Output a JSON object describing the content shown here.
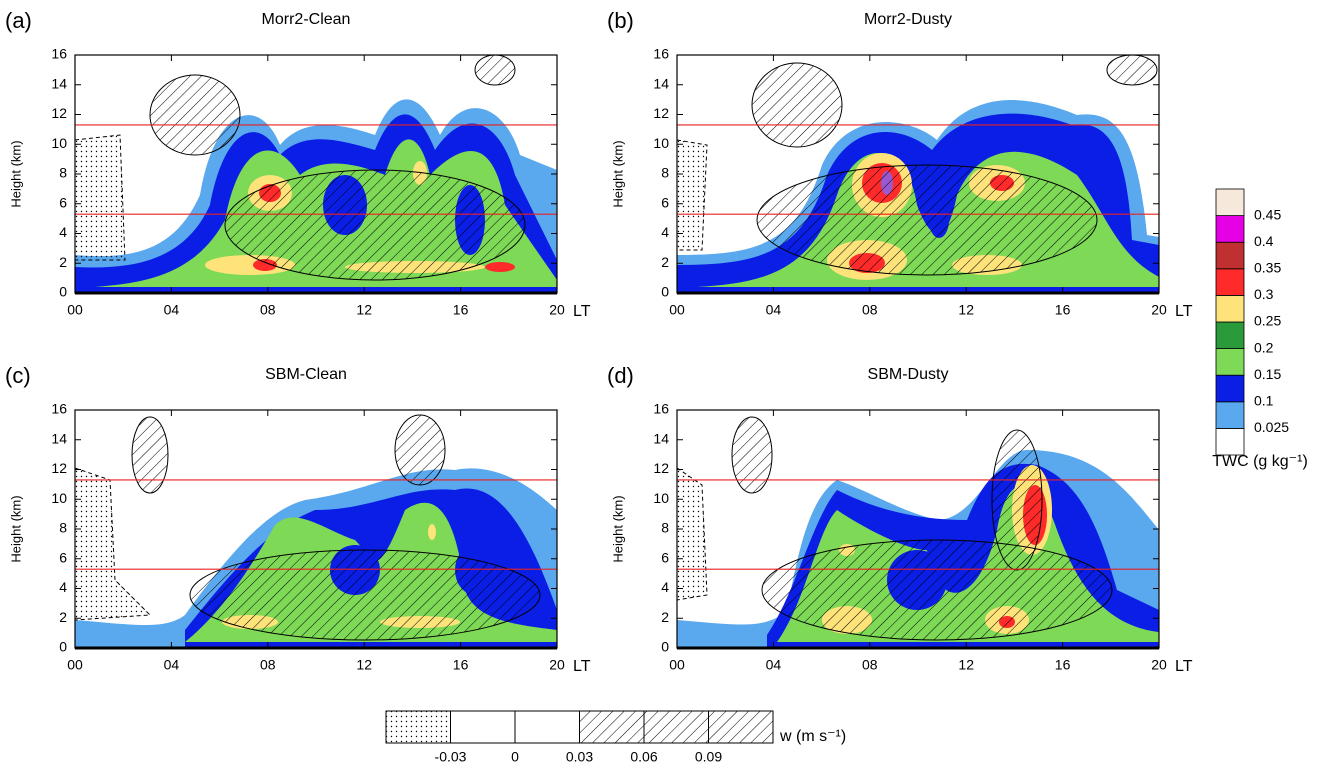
{
  "chart_data": [
    {
      "type": "contour",
      "panel_label": "(a)",
      "title": "Morr2-Clean",
      "ylabel": "Height (km)",
      "xlabel": "LT",
      "xlim": [
        0,
        20
      ],
      "ylim": [
        0,
        16
      ],
      "xticks": [
        {
          "value": 0,
          "label": "00"
        },
        {
          "value": 4,
          "label": "04"
        },
        {
          "value": 8,
          "label": "08"
        },
        {
          "value": 12,
          "label": "12"
        },
        {
          "value": 16,
          "label": "16"
        },
        {
          "value": 20,
          "label": "20"
        }
      ],
      "yticks": [
        0,
        2,
        4,
        6,
        8,
        10,
        12,
        14,
        16
      ],
      "hlines": [
        5.3,
        11.3
      ],
      "hline_color": "#e82020"
    },
    {
      "type": "contour",
      "panel_label": "(b)",
      "title": "Morr2-Dusty",
      "ylabel": "Height (km)",
      "xlabel": "LT",
      "xlim": [
        0,
        20
      ],
      "ylim": [
        0,
        16
      ],
      "xticks": [
        {
          "value": 0,
          "label": "00"
        },
        {
          "value": 4,
          "label": "04"
        },
        {
          "value": 8,
          "label": "08"
        },
        {
          "value": 12,
          "label": "12"
        },
        {
          "value": 16,
          "label": "16"
        },
        {
          "value": 20,
          "label": "20"
        }
      ],
      "yticks": [
        0,
        2,
        4,
        6,
        8,
        10,
        12,
        14,
        16
      ],
      "hlines": [
        5.3,
        11.3
      ],
      "hline_color": "#e82020"
    },
    {
      "type": "contour",
      "panel_label": "(c)",
      "title": "SBM-Clean",
      "ylabel": "Height (km)",
      "xlabel": "LT",
      "xlim": [
        0,
        20
      ],
      "ylim": [
        0,
        16
      ],
      "xticks": [
        {
          "value": 0,
          "label": "00"
        },
        {
          "value": 4,
          "label": "04"
        },
        {
          "value": 8,
          "label": "08"
        },
        {
          "value": 12,
          "label": "12"
        },
        {
          "value": 16,
          "label": "16"
        },
        {
          "value": 20,
          "label": "20"
        }
      ],
      "yticks": [
        0,
        2,
        4,
        6,
        8,
        10,
        12,
        14,
        16
      ],
      "hlines": [
        5.3,
        11.3
      ],
      "hline_color": "#e82020"
    },
    {
      "type": "contour",
      "panel_label": "(d)",
      "title": "SBM-Dusty",
      "ylabel": "Height (km)",
      "xlabel": "LT",
      "xlim": [
        0,
        20
      ],
      "ylim": [
        0,
        16
      ],
      "xticks": [
        {
          "value": 0,
          "label": "00"
        },
        {
          "value": 4,
          "label": "04"
        },
        {
          "value": 8,
          "label": "08"
        },
        {
          "value": 12,
          "label": "12"
        },
        {
          "value": 16,
          "label": "16"
        },
        {
          "value": 20,
          "label": "20"
        }
      ],
      "yticks": [
        0,
        2,
        4,
        6,
        8,
        10,
        12,
        14,
        16
      ],
      "hlines": [
        5.3,
        11.3
      ],
      "hline_color": "#e82020"
    },
    {
      "type": "colorbar",
      "title": "TWC (g kg⁻¹)",
      "levels": [
        0.025,
        0.1,
        0.15,
        0.2,
        0.25,
        0.3,
        0.35,
        0.4,
        0.45
      ],
      "colors": [
        "#ffffff",
        "#5aa8ee",
        "#0a1ee6",
        "#7ed957",
        "#2a9a3a",
        "#fde37a",
        "#ff2a2a",
        "#c03030",
        "#e600e6",
        "#f6e8da"
      ]
    },
    {
      "type": "patternbar",
      "title": "w (m s⁻¹)",
      "levels": [
        -0.03,
        0,
        0.03,
        0.06,
        0.09
      ],
      "fills": [
        "stipple",
        "none",
        "none",
        "hatch",
        "hatch",
        "hatch"
      ]
    }
  ]
}
